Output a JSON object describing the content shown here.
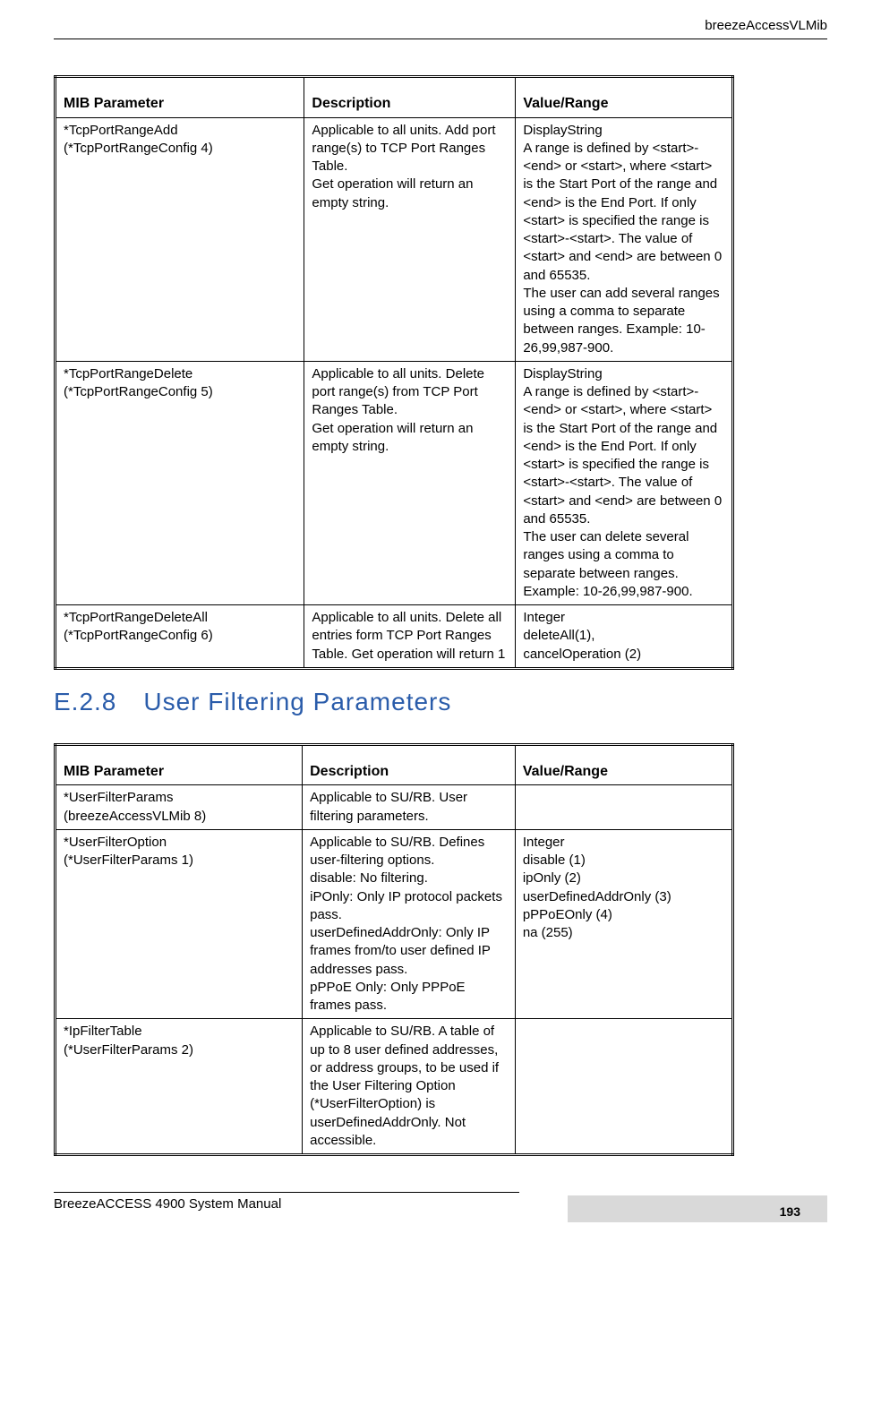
{
  "header": {
    "title": "breezeAccessVLMib"
  },
  "section": {
    "number": "E.2.8",
    "title": "User Filtering Parameters"
  },
  "footer": {
    "manual": "BreezeACCESS 4900 System Manual",
    "page": "193"
  },
  "table1": {
    "columns": [
      "MIB Parameter",
      "Description",
      "Value/Range"
    ],
    "rows": [
      {
        "param": "*TcpPortRangeAdd\n(*TcpPortRangeConfig 4)",
        "desc": "Applicable to all units. Add port range(s) to TCP Port Ranges Table.\nGet operation will return an empty string.",
        "val": "DisplayString\nA range is defined by <start>-<end> or <start>, where <start> is the Start Port of the range and <end> is the End Port. If only <start> is specified the range is <start>-<start>. The value of  <start> and <end> are between 0 and 65535.\nThe user can add several ranges using a comma to separate between ranges. Example: 10-26,99,987-900."
      },
      {
        "param": "*TcpPortRangeDelete\n(*TcpPortRangeConfig 5)",
        "desc": "Applicable to all units. Delete port range(s) from TCP Port Ranges Table.\nGet operation will return an empty string.",
        "val": "DisplayString\nA range is defined by <start>-<end> or <start>, where <start> is the Start Port of the range and <end> is the End Port. If only <start> is specified the range is <start>-<start>. The value of  <start> and <end> are between 0 and 65535.\nThe user can delete several ranges using a comma to separate between ranges. Example: 10-26,99,987-900."
      },
      {
        "param": "*TcpPortRangeDeleteAll\n(*TcpPortRangeConfig 6)",
        "desc": "Applicable to all units. Delete all entries form TCP Port Ranges Table. Get operation will return 1",
        "val": "Integer\ndeleteAll(1),\ncancelOperation (2)"
      }
    ]
  },
  "table2": {
    "columns": [
      "MIB Parameter",
      "Description",
      "Value/Range"
    ],
    "rows": [
      {
        "param": "*UserFilterParams\n(breezeAccessVLMib 8)",
        "desc": "Applicable to SU/RB. User filtering parameters.",
        "val": ""
      },
      {
        "param": "*UserFilterOption\n(*UserFilterParams 1)",
        "desc": "Applicable to SU/RB. Defines user-filtering options.\ndisable: No filtering.\niPOnly: Only IP protocol packets pass.\nuserDefinedAddrOnly: Only IP frames from/to user defined IP addresses pass.\npPPoE Only: Only PPPoE frames pass.",
        "val": "Integer\ndisable (1)\nipOnly (2)\nuserDefinedAddrOnly (3)\npPPoEOnly (4)\nna (255)"
      },
      {
        "param": "*IpFilterTable\n(*UserFilterParams 2)",
        "desc": "Applicable to SU/RB. A table of up to 8 user defined addresses, or address groups, to be used if the User Filtering Option (*UserFilterOption) is userDefinedAddrOnly. Not accessible.",
        "val": ""
      }
    ]
  }
}
